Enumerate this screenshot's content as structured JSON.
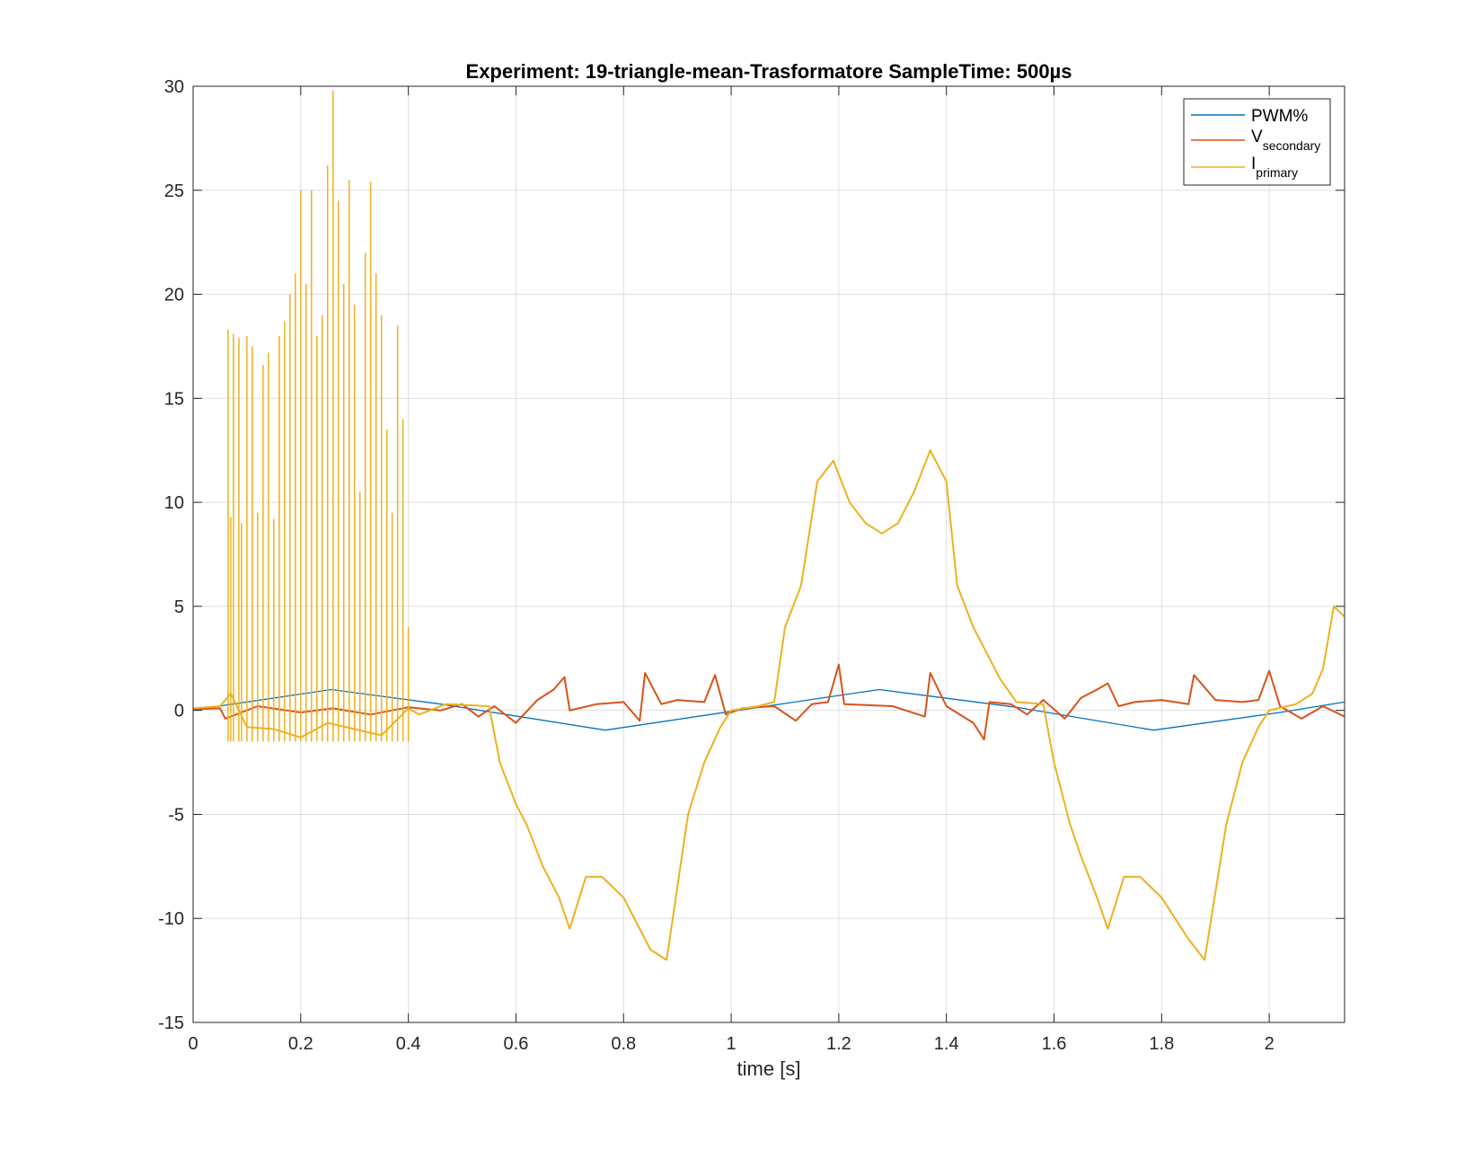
{
  "chart_data": {
    "type": "line",
    "title": "Experiment: 19-triangle-mean-Trasformatore   SampleTime: 500µs",
    "xlabel": "time [s]",
    "ylabel": "",
    "xlim": [
      0,
      2.14
    ],
    "ylim": [
      -15,
      30
    ],
    "xticks": [
      0,
      0.2,
      0.4,
      0.6,
      0.8,
      1,
      1.2,
      1.4,
      1.6,
      1.8,
      2
    ],
    "xtick_labels": [
      "0",
      "0.2",
      "0.4",
      "0.6",
      "0.8",
      "1",
      "1.2",
      "1.4",
      "1.6",
      "1.8",
      "2"
    ],
    "yticks": [
      -15,
      -10,
      -5,
      0,
      5,
      10,
      15,
      20,
      25,
      30
    ],
    "ytick_labels": [
      "-15",
      "-10",
      "-5",
      "0",
      "5",
      "10",
      "15",
      "20",
      "25",
      "30"
    ],
    "grid": true,
    "legend_position": "top-right",
    "series": [
      {
        "name": "PWM%",
        "legend_main": "PWM%",
        "legend_sub": "",
        "color": "#0072BD",
        "x": [
          0,
          0.06,
          0.257,
          0.46,
          0.766,
          1.0,
          1.275,
          1.53,
          1.785,
          2.02,
          2.14
        ],
        "y": [
          0,
          0.25,
          1.0,
          0.3,
          -0.95,
          -0.05,
          1.0,
          0.15,
          -0.95,
          -0.1,
          0.4
        ]
      },
      {
        "name": "Vsecondary",
        "legend_main": "V",
        "legend_sub": "secondary",
        "color": "#D95319",
        "x": [
          0,
          0.05,
          0.06,
          0.12,
          0.2,
          0.26,
          0.33,
          0.4,
          0.46,
          0.5,
          0.53,
          0.56,
          0.6,
          0.64,
          0.67,
          0.69,
          0.7,
          0.75,
          0.8,
          0.83,
          0.84,
          0.87,
          0.9,
          0.95,
          0.97,
          0.99,
          1.02,
          1.08,
          1.12,
          1.15,
          1.18,
          1.2,
          1.21,
          1.3,
          1.36,
          1.37,
          1.4,
          1.45,
          1.47,
          1.48,
          1.52,
          1.55,
          1.58,
          1.62,
          1.65,
          1.68,
          1.7,
          1.72,
          1.75,
          1.8,
          1.85,
          1.86,
          1.9,
          1.95,
          1.98,
          2.0,
          2.02,
          2.06,
          2.1,
          2.14
        ],
        "y": [
          0.05,
          0.1,
          -0.4,
          0.2,
          -0.1,
          0.1,
          -0.2,
          0.15,
          0.0,
          0.3,
          -0.3,
          0.2,
          -0.6,
          0.5,
          1.0,
          1.6,
          0.0,
          0.3,
          0.4,
          -0.5,
          1.8,
          0.3,
          0.5,
          0.4,
          1.7,
          -0.2,
          0.1,
          0.2,
          -0.5,
          0.3,
          0.4,
          2.2,
          0.3,
          0.2,
          -0.3,
          1.8,
          0.2,
          -0.6,
          -1.4,
          0.4,
          0.3,
          -0.2,
          0.5,
          -0.4,
          0.6,
          1.0,
          1.3,
          0.2,
          0.4,
          0.5,
          0.3,
          1.7,
          0.5,
          0.4,
          0.5,
          1.9,
          0.2,
          -0.4,
          0.2,
          -0.3
        ]
      },
      {
        "name": "Iprimary",
        "legend_main": "I",
        "legend_sub": "primary",
        "color": "#EDB120",
        "x": [
          0,
          0.05,
          0.07,
          0.1,
          0.15,
          0.2,
          0.25,
          0.3,
          0.35,
          0.4,
          0.42,
          0.47,
          0.55,
          0.57,
          0.6,
          0.62,
          0.65,
          0.68,
          0.7,
          0.73,
          0.76,
          0.8,
          0.85,
          0.88,
          0.92,
          0.95,
          0.98,
          1.0,
          1.05,
          1.08,
          1.1,
          1.13,
          1.16,
          1.19,
          1.22,
          1.25,
          1.28,
          1.31,
          1.34,
          1.37,
          1.4,
          1.42,
          1.45,
          1.47,
          1.5,
          1.53,
          1.58,
          1.6,
          1.63,
          1.65,
          1.68,
          1.7,
          1.73,
          1.76,
          1.8,
          1.85,
          1.88,
          1.92,
          1.95,
          1.98,
          2.0,
          2.05,
          2.08,
          2.1,
          2.12,
          2.14
        ],
        "y": [
          0.1,
          0.2,
          0.8,
          -0.8,
          -0.9,
          -1.3,
          -0.6,
          -0.9,
          -1.2,
          0.1,
          -0.2,
          0.3,
          0.2,
          -2.5,
          -4.5,
          -5.5,
          -7.5,
          -9.0,
          -10.5,
          -8.0,
          -8.0,
          -9.0,
          -11.5,
          -12.0,
          -5.0,
          -2.5,
          -0.8,
          0.0,
          0.2,
          0.4,
          4.0,
          6.0,
          11.0,
          12.0,
          10.0,
          9.0,
          8.5,
          9.0,
          10.5,
          12.5,
          11.0,
          6.0,
          4.0,
          3.0,
          1.5,
          0.4,
          0.3,
          -2.5,
          -5.5,
          -7.0,
          -9.0,
          -10.5,
          -8.0,
          -8.0,
          -9.0,
          -11.0,
          -12.0,
          -5.5,
          -2.5,
          -0.8,
          0.0,
          0.3,
          0.8,
          2.0,
          5.0,
          4.5
        ]
      }
    ],
    "spikes": {
      "series": "Iprimary",
      "x": [
        0.065,
        0.07,
        0.075,
        0.085,
        0.09,
        0.1,
        0.11,
        0.12,
        0.13,
        0.14,
        0.15,
        0.16,
        0.17,
        0.18,
        0.19,
        0.2,
        0.21,
        0.22,
        0.23,
        0.24,
        0.25,
        0.26,
        0.27,
        0.28,
        0.29,
        0.3,
        0.31,
        0.32,
        0.33,
        0.34,
        0.35,
        0.36,
        0.37,
        0.38,
        0.39,
        0.4
      ],
      "y": [
        18.3,
        9.3,
        18.1,
        17.9,
        9.0,
        18.0,
        17.5,
        9.5,
        16.6,
        17.2,
        9.2,
        18.0,
        18.7,
        20.0,
        21.0,
        25.0,
        20.5,
        25.0,
        18.0,
        19.0,
        26.2,
        29.8,
        24.5,
        20.5,
        25.5,
        19.5,
        10.5,
        22.0,
        25.4,
        21.0,
        19.0,
        13.5,
        9.5,
        18.5,
        14.0,
        4.0
      ]
    }
  }
}
